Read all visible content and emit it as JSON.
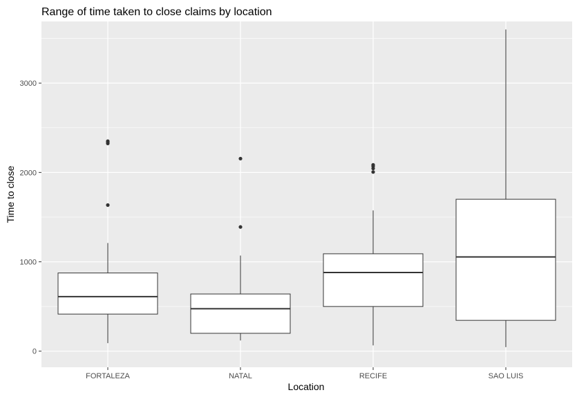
{
  "chart_data": {
    "type": "boxplot",
    "title": "Range of time taken to close claims by location",
    "xlabel": "Location",
    "ylabel": "Time to close",
    "ylim": [
      -180,
      3690
    ],
    "yticks": [
      0,
      1000,
      2000,
      3000
    ],
    "ytick_labels": [
      "0",
      "1000",
      "2000",
      "3000"
    ],
    "grid": true,
    "categories": [
      "FORTALEZA",
      "NATAL",
      "RECIFE",
      "SAO LUIS"
    ],
    "boxes": [
      {
        "category": "FORTALEZA",
        "whisker_low": 90,
        "q1": 415,
        "median": 610,
        "q3": 875,
        "whisker_high": 1210,
        "outliers": [
          1635,
          2325,
          2340,
          2350
        ]
      },
      {
        "category": "NATAL",
        "whisker_low": 120,
        "q1": 200,
        "median": 475,
        "q3": 640,
        "whisker_high": 1070,
        "outliers": [
          1390,
          2155
        ]
      },
      {
        "category": "RECIFE",
        "whisker_low": 65,
        "q1": 500,
        "median": 880,
        "q3": 1090,
        "whisker_high": 1575,
        "outliers": [
          2005,
          2045,
          2070,
          2085
        ]
      },
      {
        "category": "SAO LUIS",
        "whisker_low": 45,
        "q1": 345,
        "median": 1055,
        "q3": 1700,
        "whisker_high": 3600,
        "outliers": []
      }
    ],
    "colors": {
      "panel_bg": "#ebebeb",
      "grid_major": "#ffffff",
      "box_fill": "#ffffff",
      "box_line": "#333333",
      "outlier": "#333333"
    }
  }
}
